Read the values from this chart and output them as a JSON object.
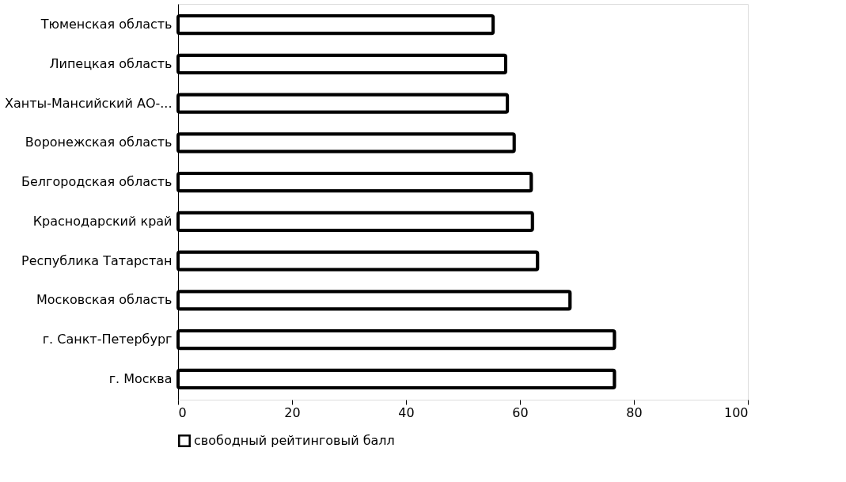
{
  "chart_data": {
    "type": "bar",
    "orientation": "horizontal",
    "categories": [
      "Тюменская область",
      "Липецкая область",
      "Ханты-Мансийский АО-...",
      "Воронежская область",
      "Белгородская область",
      "Краснодарский край",
      "Республика Татарстан",
      "Московская область",
      "г. Санкт-Петербург",
      "г. Москва"
    ],
    "series": [
      {
        "name": "свободный рейтинговый балл",
        "color": "#ffffff",
        "values": [
          55.3,
          57.5,
          57.8,
          59.0,
          62.0,
          62.2,
          63.1,
          68.8,
          76.6,
          76.6
        ]
      }
    ],
    "xlim": [
      0,
      100
    ],
    "xticks": [
      0,
      20,
      40,
      60,
      80,
      100
    ],
    "grid": false,
    "legend": "bottom"
  }
}
